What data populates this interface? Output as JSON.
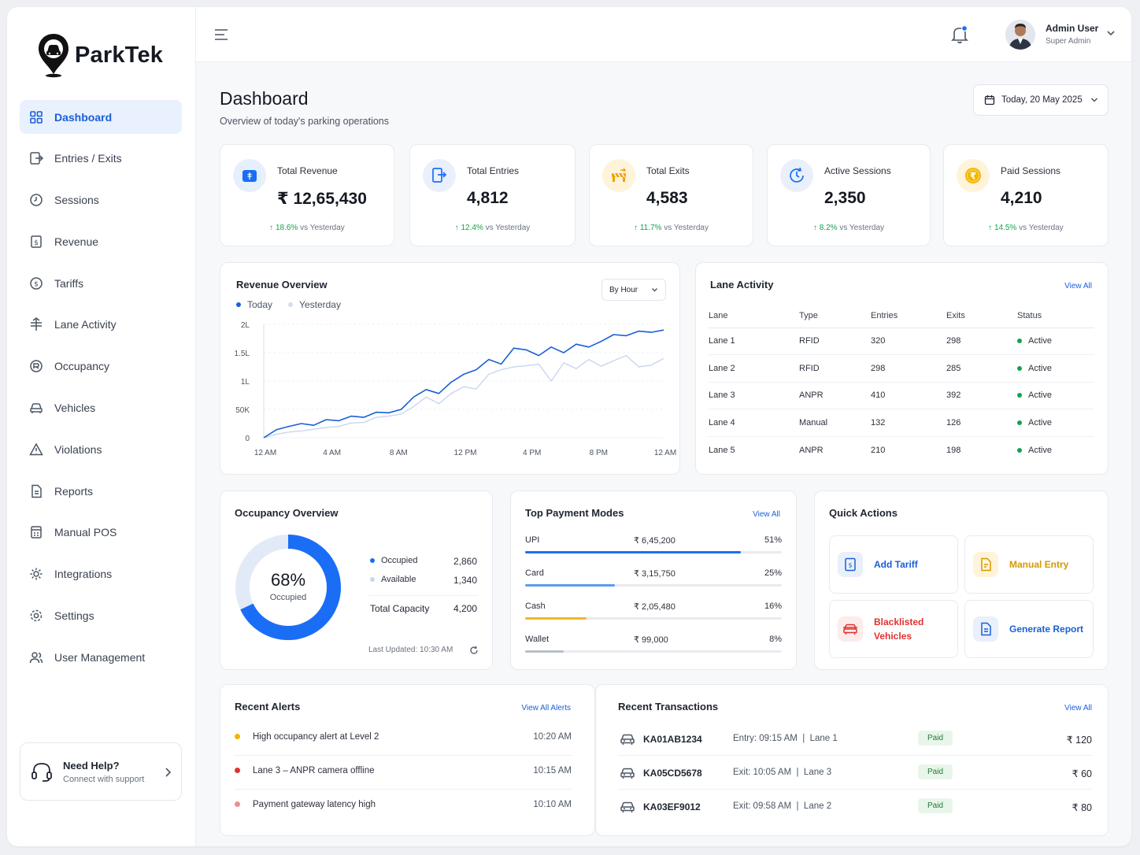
{
  "app": {
    "name": "ParkTek"
  },
  "sidebar": {
    "items": [
      {
        "label": "Dashboard",
        "icon": "grid-icon",
        "active": true
      },
      {
        "label": "Entries / Exits",
        "icon": "entry-exit-icon"
      },
      {
        "label": "Sessions",
        "icon": "clock-icon"
      },
      {
        "label": "Revenue",
        "icon": "revenue-icon"
      },
      {
        "label": "Tariffs",
        "icon": "tariff-icon"
      },
      {
        "label": "Lane Activity",
        "icon": "lane-icon"
      },
      {
        "label": "Occupancy",
        "icon": "occupancy-icon"
      },
      {
        "label": "Vehicles",
        "icon": "car-icon"
      },
      {
        "label": "Violations",
        "icon": "warning-icon"
      },
      {
        "label": "Reports",
        "icon": "document-icon"
      },
      {
        "label": "Manual POS",
        "icon": "pos-icon"
      },
      {
        "label": "Integrations",
        "icon": "integrations-icon"
      },
      {
        "label": "Settings",
        "icon": "gear-icon"
      },
      {
        "label": "User Management",
        "icon": "users-icon"
      }
    ],
    "help": {
      "title": "Need Help?",
      "subtitle": "Connect with support"
    }
  },
  "topbar": {
    "user_name": "Admin User",
    "user_role": "Super Admin"
  },
  "page": {
    "title": "Dashboard",
    "subtitle": "Overview of today's parking operations",
    "date_label": "Today, 20 May 2025"
  },
  "stats": [
    {
      "label": "Total Revenue",
      "value": "₹ 12,65,430",
      "delta": "18.6%",
      "delta_suffix": "vs Yesterday",
      "icon": "wallet-icon",
      "color": "#1a6ef5",
      "bg": "#e6effe"
    },
    {
      "label": "Total Entries",
      "value": "4,812",
      "delta": "12.4%",
      "delta_suffix": "vs Yesterday",
      "icon": "entry-icon",
      "color": "#1a6ef5",
      "bg": "#e9f0fb"
    },
    {
      "label": "Total Exits",
      "value": "4,583",
      "delta": "11.7%",
      "delta_suffix": "vs Yesterday",
      "icon": "exit-barrier-icon",
      "color": "#f0a500",
      "bg": "#fff4d9"
    },
    {
      "label": "Active Sessions",
      "value": "2,350",
      "delta": "8.2%",
      "delta_suffix": "vs Yesterday",
      "icon": "timer-icon",
      "color": "#1a6ef5",
      "bg": "#e9f0fb"
    },
    {
      "label": "Paid Sessions",
      "value": "4,210",
      "delta": "14.5%",
      "delta_suffix": "vs Yesterday",
      "icon": "rupee-coin-icon",
      "color": "#f0a500",
      "bg": "#fff4d9"
    }
  ],
  "revenue_overview": {
    "title": "Revenue Overview",
    "period": "By Hour",
    "legend": [
      "Today",
      "Yesterday"
    ]
  },
  "chart_data": {
    "type": "line",
    "title": "Revenue Overview",
    "x_ticks": [
      "12 AM",
      "4 AM",
      "8 AM",
      "12 PM",
      "4 PM",
      "8 PM",
      "12 AM"
    ],
    "y_ticks": [
      "0",
      "50K",
      "1L",
      "1.5L",
      "2L"
    ],
    "ylim": [
      0,
      200000
    ],
    "legend_placement": "top-left",
    "grid": true,
    "x": [
      0,
      0.75,
      1.5,
      2.25,
      3,
      3.75,
      4.5,
      5.25,
      6,
      6.75,
      7.5,
      8.25,
      9,
      9.75,
      10.5,
      11.25,
      12,
      12.75,
      13.5,
      14.25,
      15,
      15.75,
      16.5,
      17.25,
      18,
      18.75,
      19.5,
      20.25,
      21,
      21.75,
      22.5,
      23.25,
      24
    ],
    "series": [
      {
        "name": "Today",
        "color": "#1a5fd6",
        "values": [
          0,
          14000,
          20000,
          25000,
          22000,
          32000,
          30000,
          38000,
          36000,
          45000,
          44000,
          50000,
          72000,
          85000,
          78000,
          98000,
          112000,
          120000,
          138000,
          130000,
          158000,
          155000,
          145000,
          160000,
          150000,
          165000,
          160000,
          170000,
          182000,
          180000,
          188000,
          186000,
          190000
        ]
      },
      {
        "name": "Yesterday",
        "color": "#c9d6ee",
        "values": [
          0,
          6000,
          10000,
          12000,
          15000,
          18000,
          20000,
          26000,
          27000,
          36000,
          38000,
          42000,
          55000,
          72000,
          60000,
          78000,
          90000,
          86000,
          112000,
          120000,
          125000,
          127000,
          130000,
          100000,
          132000,
          122000,
          138000,
          126000,
          136000,
          145000,
          125000,
          128000,
          140000
        ]
      }
    ]
  },
  "lane_activity": {
    "title": "Lane Activity",
    "view_all": "View All",
    "columns": [
      "Lane",
      "Type",
      "Entries",
      "Exits",
      "Status"
    ],
    "rows": [
      [
        "Lane 1",
        "RFID",
        "320",
        "298",
        "Active"
      ],
      [
        "Lane 2",
        "RFID",
        "298",
        "285",
        "Active"
      ],
      [
        "Lane 3",
        "ANPR",
        "410",
        "392",
        "Active"
      ],
      [
        "Lane 4",
        "Manual",
        "132",
        "126",
        "Active"
      ],
      [
        "Lane 5",
        "ANPR",
        "210",
        "198",
        "Active"
      ]
    ]
  },
  "occupancy": {
    "title": "Occupancy Overview",
    "percent": "68%",
    "percent_value": 68,
    "center_label": "Occupied",
    "items": [
      {
        "label": "Occupied",
        "value": "2,860",
        "color": "#1a6ef5"
      },
      {
        "label": "Available",
        "value": "1,340",
        "color": "#c9d6ee"
      }
    ],
    "capacity_label": "Total Capacity",
    "capacity_value": "4,200",
    "last_updated": "Last Updated: 10:30 AM"
  },
  "payment_modes": {
    "title": "Top Payment Modes",
    "view_all": "View All",
    "rows": [
      {
        "mode": "UPI",
        "amount": "₹ 6,45,200",
        "percent": "51%",
        "fraction": 0.84,
        "color": "#1a6ef5"
      },
      {
        "mode": "Card",
        "amount": "₹ 3,15,750",
        "percent": "25%",
        "fraction": 0.35,
        "color": "#5b9bf3"
      },
      {
        "mode": "Cash",
        "amount": "₹ 2,05,480",
        "percent": "16%",
        "fraction": 0.24,
        "color": "#f0b72a"
      },
      {
        "mode": "Wallet",
        "amount": "₹ 99,000",
        "percent": "8%",
        "fraction": 0.15,
        "color": "#b9bec8"
      }
    ]
  },
  "quick_actions": {
    "title": "Quick Actions",
    "items": [
      {
        "label": "Add Tariff",
        "color": "#1a5fd6",
        "bg": "#e9f0fb"
      },
      {
        "label": "Manual Entry",
        "color": "#d39a00",
        "bg": "#fff4d9"
      },
      {
        "label": "Blacklisted Vehicles",
        "color": "#e03131",
        "bg": "#fdecec"
      },
      {
        "label": "Generate Report",
        "color": "#1a5fd6",
        "bg": "#e9f0fb"
      }
    ]
  },
  "alerts": {
    "title": "Recent Alerts",
    "view_all": "View All Alerts",
    "rows": [
      {
        "text": "High occupancy alert at Level 2",
        "time": "10:20 AM",
        "color": "#f5b400"
      },
      {
        "text": "Lane 3 – ANPR camera offline",
        "time": "10:15 AM",
        "color": "#e03131"
      },
      {
        "text": "Payment gateway latency high",
        "time": "10:10 AM",
        "color": "#f08c8c"
      }
    ]
  },
  "transactions": {
    "title": "Recent Transactions",
    "view_all": "View All",
    "rows": [
      {
        "plate": "KA01AB1234",
        "detail": "Entry: 09:15 AM  |  Lane 1",
        "status": "Paid",
        "amount": "₹ 120"
      },
      {
        "plate": "KA05CD5678",
        "detail": "Exit: 10:05 AM  |  Lane 3",
        "status": "Paid",
        "amount": "₹ 60"
      },
      {
        "plate": "KA03EF9012",
        "detail": "Exit: 09:58 AM  |  Lane 2",
        "status": "Paid",
        "amount": "₹ 80"
      }
    ]
  }
}
